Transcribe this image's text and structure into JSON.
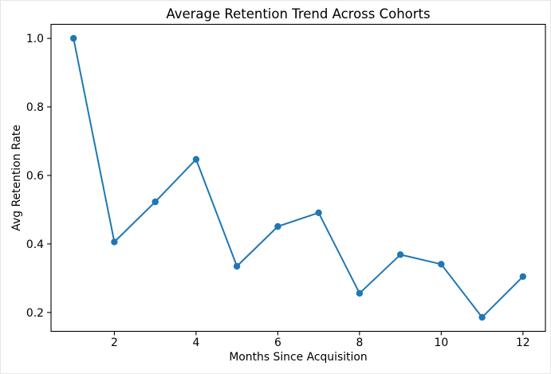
{
  "chart_data": {
    "type": "line",
    "title": "Average Retention Trend Across Cohorts",
    "xlabel": "Months Since Acquisition",
    "ylabel": "Avg Retention Rate",
    "series": [
      {
        "name": "Avg Retention Rate",
        "x": [
          1,
          2,
          3,
          4,
          5,
          6,
          7,
          8,
          9,
          10,
          11,
          12
        ],
        "y": [
          1.0,
          0.406,
          0.523,
          0.647,
          0.335,
          0.451,
          0.491,
          0.256,
          0.369,
          0.341,
          0.186,
          0.305
        ]
      }
    ],
    "xticks": [
      2,
      4,
      6,
      8,
      10,
      12
    ],
    "yticks": [
      0.2,
      0.4,
      0.6,
      0.8,
      1.0
    ],
    "xlim": [
      0.45,
      12.55
    ],
    "ylim": [
      0.145,
      1.041
    ],
    "grid": false,
    "legend_position": "none",
    "line_color": "#1f77b4",
    "marker": "circle",
    "marker_color": "#1f77b4",
    "background_color": "#ffffff",
    "spine_color": "#000000"
  }
}
